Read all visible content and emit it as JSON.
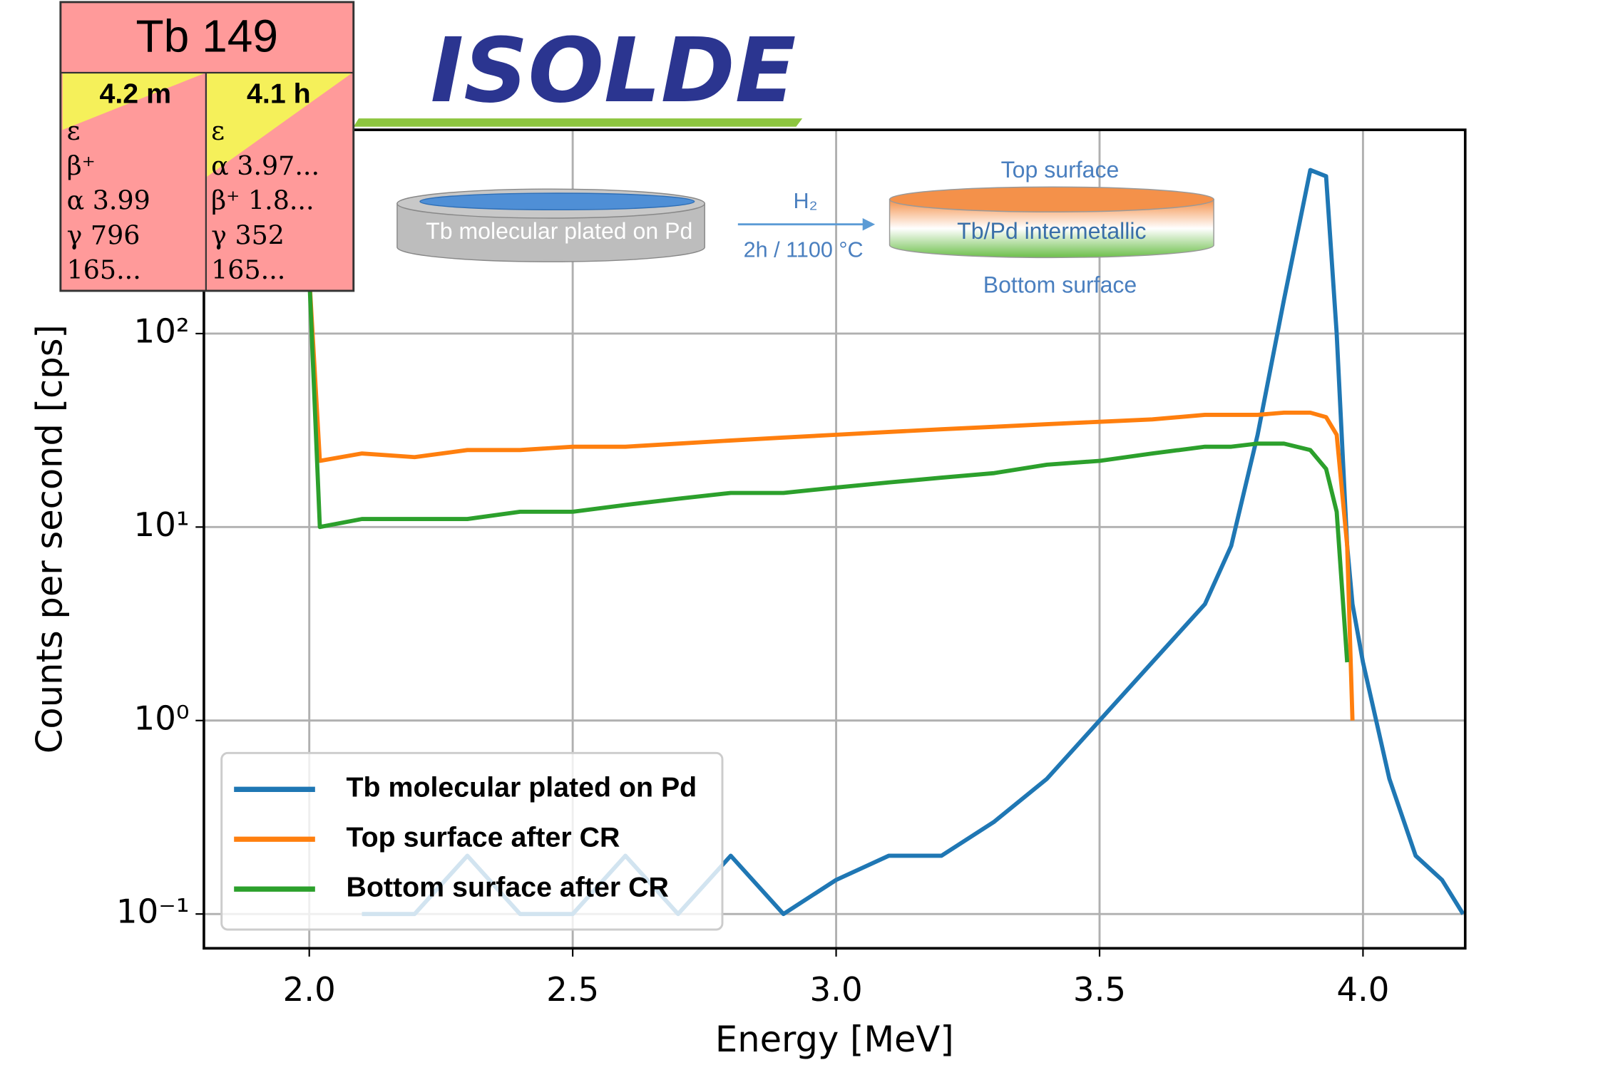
{
  "chart_data": {
    "type": "line",
    "log_y": true,
    "grid": true,
    "legend_loc": "lower left",
    "xlabel": "Energy [MeV]",
    "ylabel": "Counts per second [cps]",
    "xlim": [
      1.8,
      4.194
    ],
    "ylim": [
      0.0665,
      1130
    ],
    "xticks": [
      {
        "value": 2,
        "label": "2.0"
      },
      {
        "value": 2.5,
        "label": "2.5"
      },
      {
        "value": 3,
        "label": "3.0"
      },
      {
        "value": 3.5,
        "label": "3.5"
      },
      {
        "value": 4,
        "label": "4.0"
      }
    ],
    "yticks": [
      {
        "value": 0.1,
        "label": "10⁻¹"
      },
      {
        "value": 1,
        "label": "10⁰"
      },
      {
        "value": 10,
        "label": "10¹"
      },
      {
        "value": 100,
        "label": "10²"
      }
    ],
    "x": [
      2.0,
      2.02,
      2.1,
      2.2,
      2.3,
      2.4,
      2.5,
      2.6,
      2.7,
      2.8,
      2.9,
      3.0,
      3.1,
      3.2,
      3.3,
      3.4,
      3.5,
      3.6,
      3.7,
      3.75,
      3.8,
      3.85,
      3.9,
      3.93,
      3.95,
      3.97,
      3.98,
      4.0,
      4.05,
      4.1,
      4.15,
      4.19
    ],
    "series": [
      {
        "name": "Tb molecular plated on Pd",
        "color": "#1f77b4",
        "values": [
          null,
          null,
          0.1,
          0.1,
          0.2,
          0.1,
          0.1,
          0.2,
          0.1,
          0.2,
          0.1,
          0.15,
          0.2,
          0.2,
          0.3,
          0.5,
          1,
          2,
          4,
          8,
          30,
          150,
          700,
          650,
          100,
          8,
          4,
          2,
          0.5,
          0.2,
          0.15,
          0.1
        ]
      },
      {
        "name": "Top surface after CR",
        "color": "#ff7f0e",
        "values": [
          200,
          22,
          24,
          23,
          25,
          25,
          26,
          26,
          27,
          28,
          29,
          30,
          31,
          32,
          33,
          34,
          35,
          36,
          38,
          38,
          38,
          39,
          39,
          37,
          30,
          8,
          1,
          null,
          null,
          null,
          null,
          null
        ]
      },
      {
        "name": "Bottom surface after CR",
        "color": "#2ca02c",
        "values": [
          200,
          10,
          11,
          11,
          11,
          12,
          12,
          13,
          14,
          15,
          15,
          16,
          17,
          18,
          19,
          21,
          22,
          24,
          26,
          26,
          27,
          27,
          25,
          20,
          12,
          2,
          null,
          null,
          null,
          null,
          null,
          null
        ]
      }
    ]
  },
  "nuclide_card": {
    "title": "Tb 149",
    "left": {
      "half_life": "4.2 m",
      "lines": [
        "ε",
        "β⁺",
        "α 3.99",
        "γ 796",
        "165..."
      ]
    },
    "right": {
      "half_life": "4.1 h",
      "lines": [
        "ε",
        "α 3.97...",
        "β⁺ 1.8...",
        "γ 352",
        "165..."
      ]
    }
  },
  "logo": "ISOLDE",
  "inset": {
    "left_disc": "Tb molecular plated on Pd",
    "gas": "H₂",
    "condition": "2h / 1100 °C",
    "top": "Top surface",
    "middle": "Tb/Pd intermetallic",
    "bottom": "Bottom surface"
  }
}
